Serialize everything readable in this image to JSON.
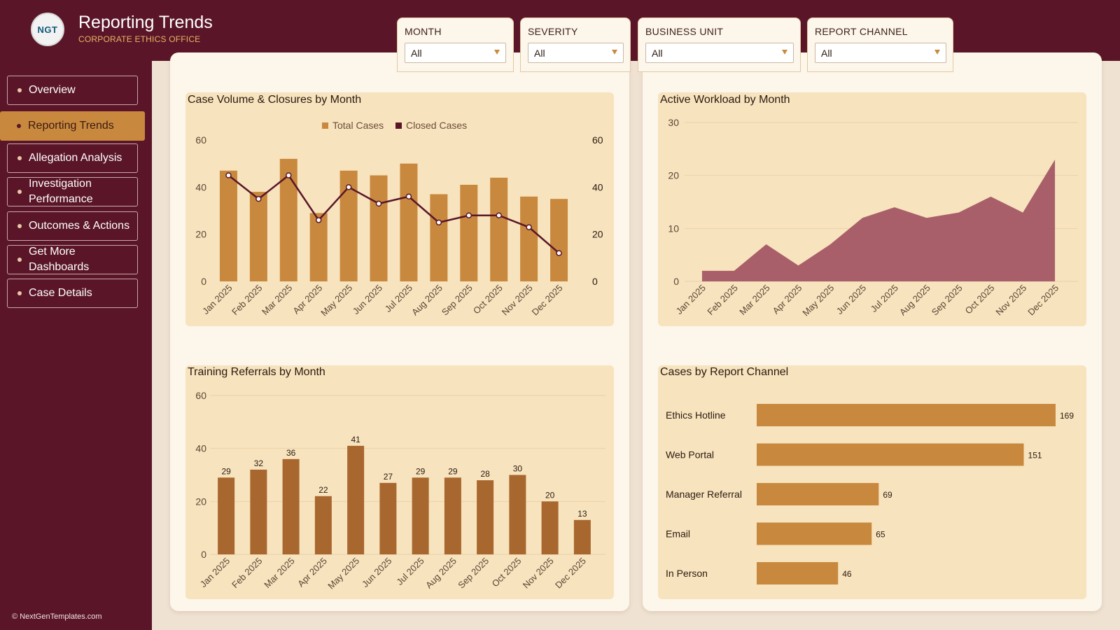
{
  "header": {
    "title": "Reporting Trends",
    "subtitle": "CORPORATE ETHICS OFFICE",
    "logo_text": "NGT"
  },
  "filters": [
    {
      "label": "MONTH",
      "value": "All"
    },
    {
      "label": "SEVERITY",
      "value": "All"
    },
    {
      "label": "BUSINESS UNIT",
      "value": "All"
    },
    {
      "label": "REPORT CHANNEL",
      "value": "All"
    }
  ],
  "sidebar": {
    "items": [
      {
        "label": "Overview",
        "active": false
      },
      {
        "label": "Reporting Trends",
        "active": true
      },
      {
        "label": "Allegation Analysis",
        "active": false
      },
      {
        "label": "Investigation Performance",
        "active": false
      },
      {
        "label": "Outcomes & Actions",
        "active": false
      },
      {
        "label": "Get More Dashboards",
        "active": false
      },
      {
        "label": "Case Details",
        "active": false
      }
    ],
    "footer": "© NextGenTemplates.com"
  },
  "colors": {
    "maroon": "#5a1628",
    "bar_gold": "#c8893f",
    "bar_brown": "#a8672e",
    "line": "#5a1628",
    "area": "#a0505f",
    "card_bg": "#f7e3bd"
  },
  "chart_data": [
    {
      "type": "bar",
      "title": "Case Volume & Closures by Month",
      "legend_position": "top-center",
      "categories": [
        "Jan 2025",
        "Feb 2025",
        "Mar 2025",
        "Apr 2025",
        "May 2025",
        "Jun 2025",
        "Jul 2025",
        "Aug 2025",
        "Sep 2025",
        "Oct 2025",
        "Nov 2025",
        "Dec 2025"
      ],
      "series": [
        {
          "name": "Total Cases",
          "type": "bar",
          "values": [
            47,
            38,
            52,
            29,
            47,
            45,
            50,
            37,
            41,
            44,
            36,
            35
          ]
        },
        {
          "name": "Closed Cases",
          "type": "line",
          "values": [
            45,
            35,
            45,
            26,
            40,
            33,
            36,
            25,
            28,
            28,
            23,
            12
          ]
        }
      ],
      "ylim": [
        0,
        60
      ],
      "yticks": [
        0,
        20,
        40,
        60
      ],
      "y2ticks": [
        0,
        20,
        40,
        60
      ],
      "grid": false
    },
    {
      "type": "area",
      "title": "Active Workload by Month",
      "categories": [
        "Jan 2025",
        "Feb 2025",
        "Mar 2025",
        "Apr 2025",
        "May 2025",
        "Jun 2025",
        "Jul 2025",
        "Aug 2025",
        "Sep 2025",
        "Oct 2025",
        "Nov 2025",
        "Dec 2025"
      ],
      "values": [
        2,
        2,
        7,
        3,
        7,
        12,
        14,
        12,
        13,
        16,
        13,
        23
      ],
      "ylim": [
        0,
        30
      ],
      "yticks": [
        0,
        10,
        20,
        30
      ],
      "grid": true
    },
    {
      "type": "bar",
      "title": "Training Referrals by Month",
      "categories": [
        "Jan 2025",
        "Feb 2025",
        "Mar 2025",
        "Apr 2025",
        "May 2025",
        "Jun 2025",
        "Jul 2025",
        "Aug 2025",
        "Sep 2025",
        "Oct 2025",
        "Nov 2025",
        "Dec 2025"
      ],
      "values": [
        29,
        32,
        36,
        22,
        41,
        27,
        29,
        29,
        28,
        30,
        20,
        13
      ],
      "ylim": [
        0,
        60
      ],
      "yticks": [
        0,
        20,
        40,
        60
      ],
      "data_labels": true,
      "grid": true
    },
    {
      "type": "bar",
      "orientation": "horizontal",
      "title": "Cases by Report Channel",
      "categories": [
        "Ethics Hotline",
        "Web Portal",
        "Manager Referral",
        "Email",
        "In Person"
      ],
      "values": [
        169,
        151,
        69,
        65,
        46
      ],
      "data_labels": true
    }
  ]
}
